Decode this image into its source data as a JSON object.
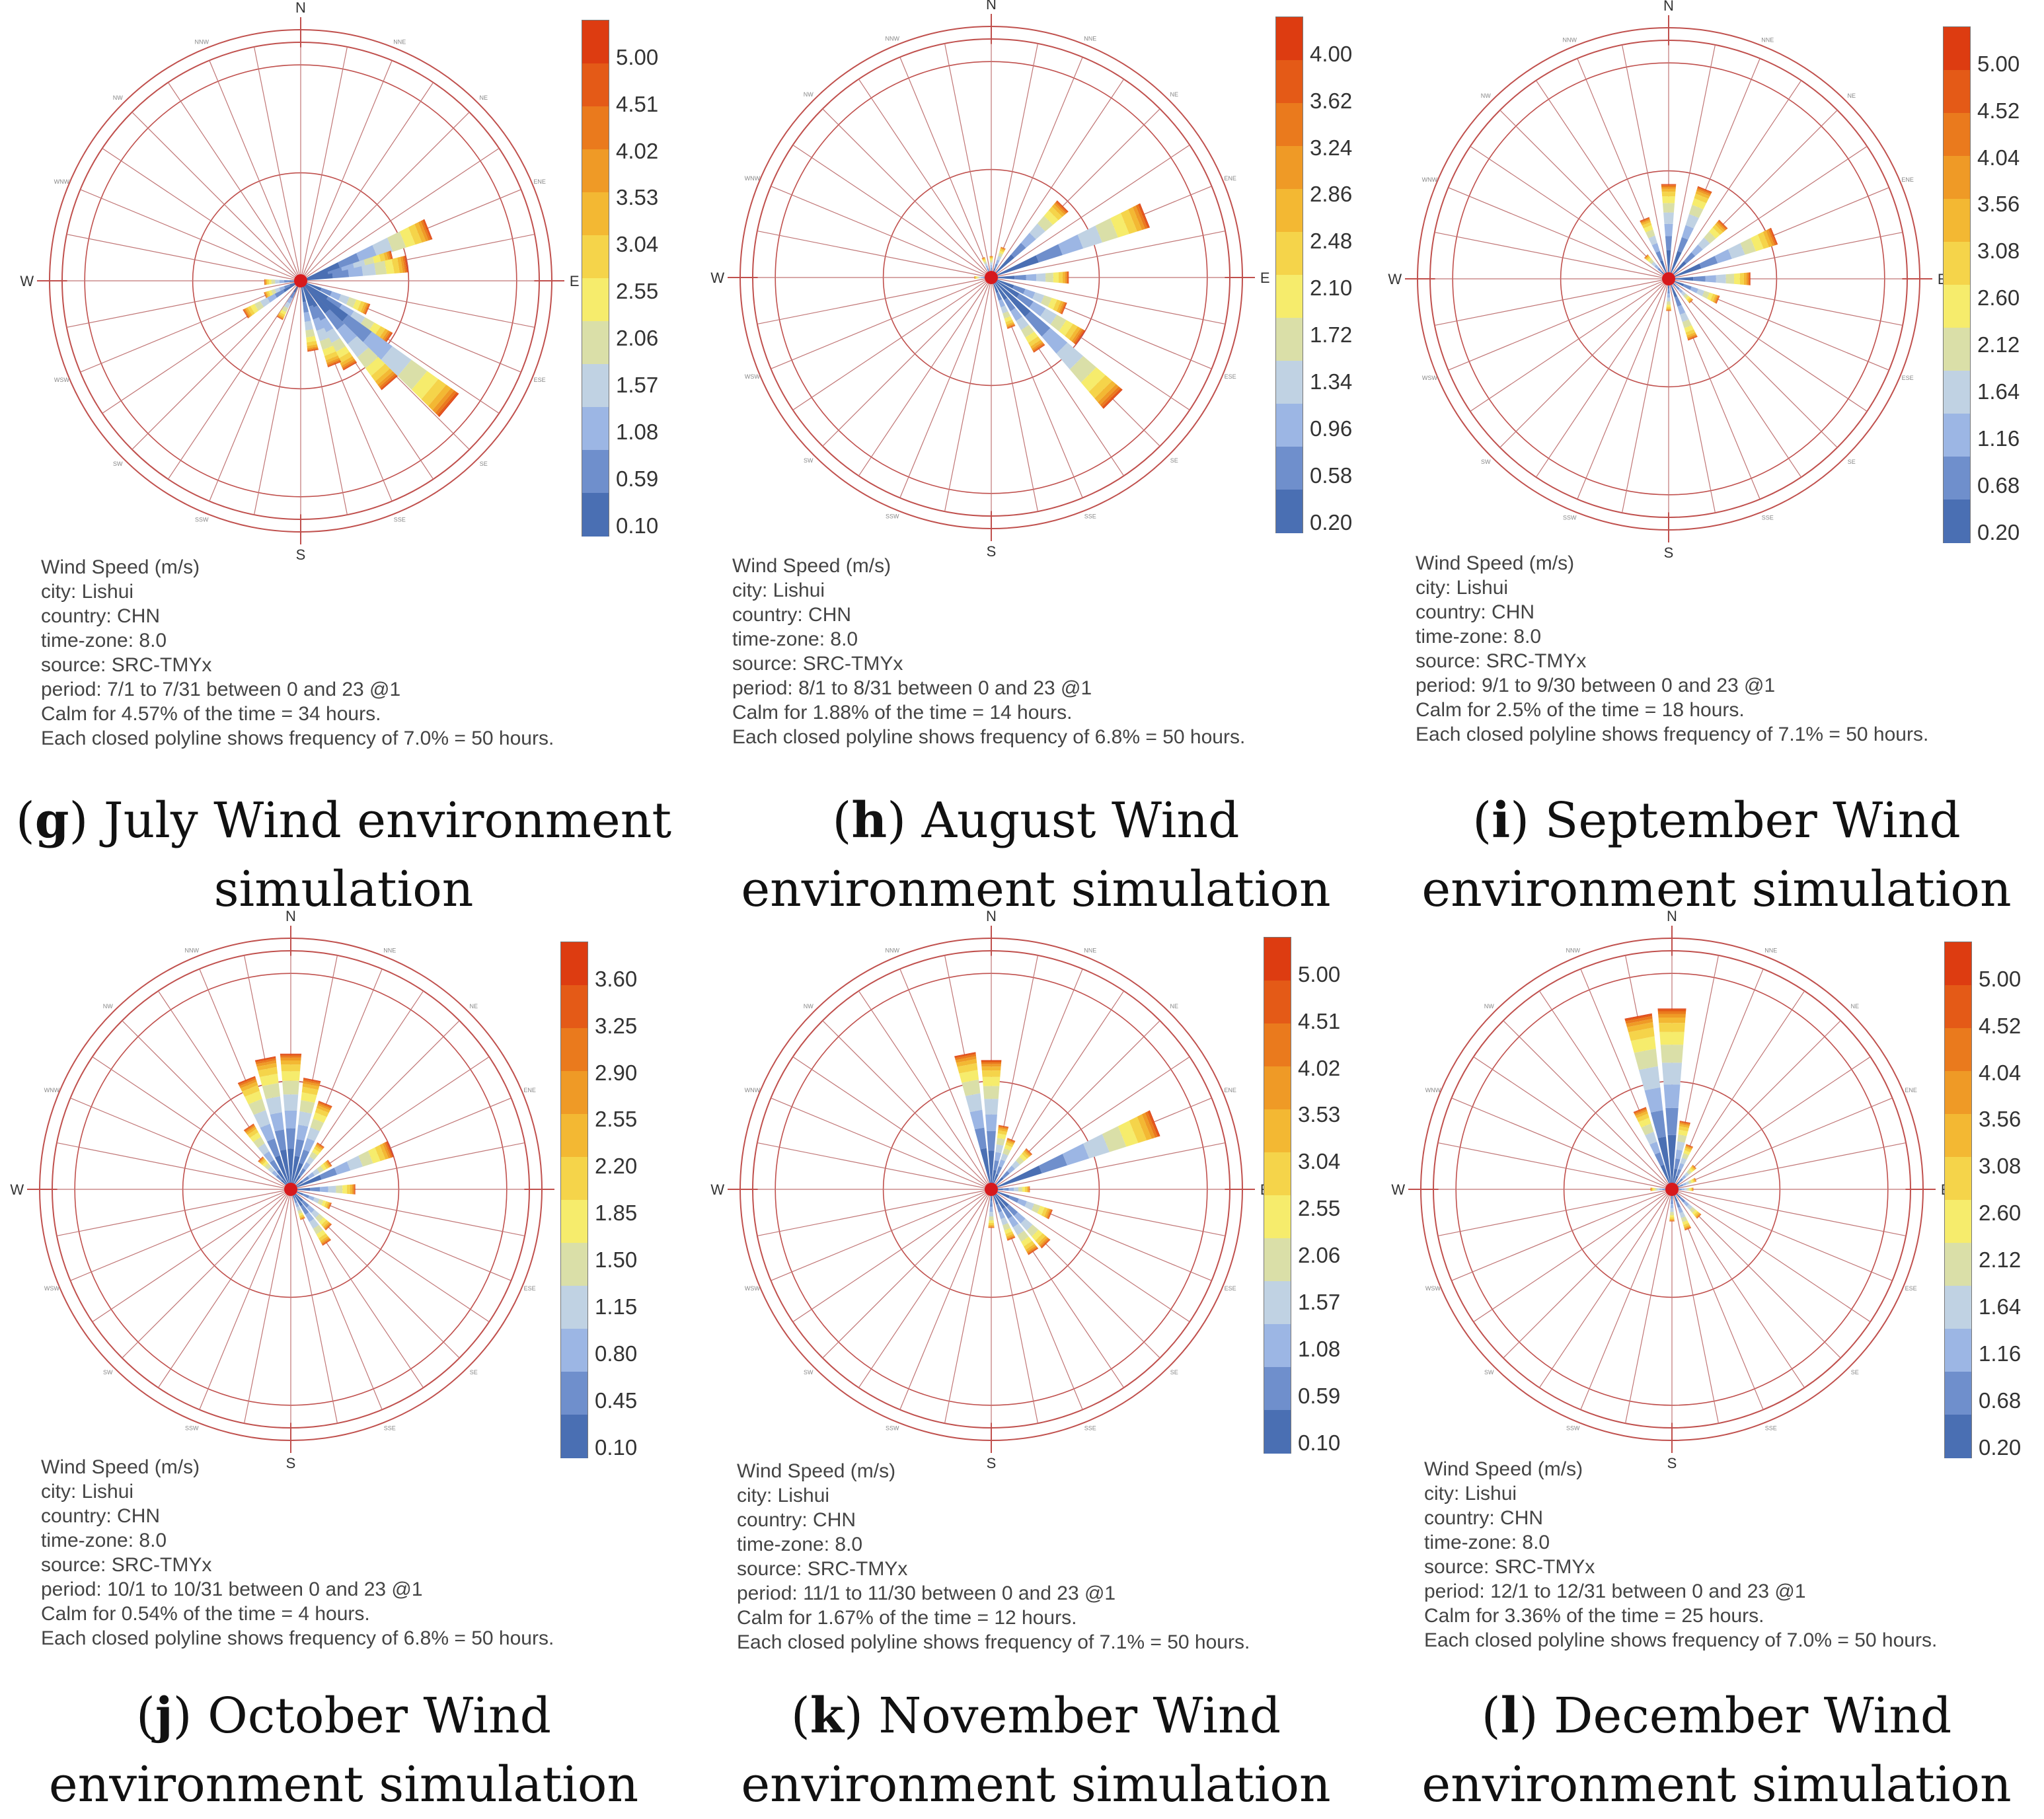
{
  "figure": {
    "directions": [
      "N",
      "NNE",
      "NE",
      "ENE",
      "E",
      "ESE",
      "SE",
      "SSE",
      "S",
      "SSW",
      "SW",
      "WSW",
      "W",
      "WNW",
      "NW",
      "NNW"
    ],
    "legend_colors": [
      "#4a6fb3",
      "#6f8fcc",
      "#9cb6e4",
      "#c0d2e3",
      "#dadfa8",
      "#f6ec6c",
      "#f5d44a",
      "#f3b833",
      "#ef9a26",
      "#ea7a1d",
      "#e45a17",
      "#dd3c11"
    ],
    "colors": {
      "ring": "#c0504d",
      "spoke": "#c07575",
      "center": "#d7191c"
    }
  },
  "chart_data": [
    {
      "type": "wind_rose",
      "id": "g",
      "title_label": "g",
      "title_text": "July Wind environment simulation",
      "legend_title": "Wind Speed (m/s)",
      "legend_ticks": [
        "5.00",
        "4.51",
        "4.02",
        "3.53",
        "3.04",
        "2.55",
        "2.06",
        "1.57",
        "1.08",
        "0.59",
        "0.10"
      ],
      "info": [
        "Wind Speed (m/s)",
        "city: Lishui",
        "country: CHN",
        "time-zone: 8.0",
        "source: SRC-TMYx",
        "period: 7/1 to 7/31 between 0 and 23 @1",
        "Calm for 4.57% of the time = 34 hours.",
        "Each closed polyline shows frequency of 7.0% = 50 hours."
      ],
      "petals": [
        [
          68,
          0.64
        ],
        [
          76,
          0.44
        ],
        [
          81,
          0.5
        ],
        [
          113,
          0.34
        ],
        [
          124,
          0.49
        ],
        [
          130,
          0.9
        ],
        [
          139,
          0.63
        ],
        [
          150,
          0.46
        ],
        [
          158,
          0.42
        ],
        [
          170,
          0.33
        ],
        [
          209,
          0.2
        ],
        [
          239,
          0.3
        ],
        [
          248,
          0.18
        ],
        [
          268,
          0.17
        ]
      ]
    },
    {
      "type": "wind_rose",
      "id": "h",
      "title_label": "h",
      "title_text": "August Wind environment simulation",
      "legend_title": "Wind Speed (m/s)",
      "legend_ticks": [
        "4.00",
        "3.62",
        "3.24",
        "2.86",
        "2.48",
        "2.10",
        "1.72",
        "1.34",
        "0.96",
        "0.58",
        "0.20"
      ],
      "info": [
        "Wind Speed (m/s)",
        "city: Lishui",
        "country: CHN",
        "time-zone: 8.0",
        "source: SRC-TMYx",
        "period: 8/1 to 8/31 between 0 and 23 @1",
        "Calm for 1.88% of the time = 14 hours.",
        "Each closed polyline shows frequency of 6.8% = 50 hours."
      ],
      "petals": [
        [
          45,
          0.47
        ],
        [
          68,
          0.77
        ],
        [
          90,
          0.36
        ],
        [
          113,
          0.37
        ],
        [
          124,
          0.5
        ],
        [
          135,
          0.8
        ],
        [
          146,
          0.4
        ],
        [
          158,
          0.25
        ],
        [
          22,
          0.15
        ],
        [
          0,
          0.1
        ],
        [
          338,
          0.1
        ],
        [
          270,
          0.08
        ]
      ]
    },
    {
      "type": "wind_rose",
      "id": "i",
      "title_label": "i",
      "title_text": "September Wind environment simulation",
      "legend_title": "Wind Speed (m/s)",
      "legend_ticks": [
        "5.00",
        "4.52",
        "4.04",
        "3.56",
        "3.08",
        "2.60",
        "2.12",
        "1.64",
        "1.16",
        "0.68",
        "0.20"
      ],
      "info": [
        "Wind Speed (m/s)",
        "city: Lishui",
        "country: CHN",
        "time-zone: 8.0",
        "source: SRC-TMYx",
        "period: 9/1 to 9/30 between 0 and 23 @1",
        "Calm for 2.5% of the time = 18 hours.",
        "Each closed polyline shows frequency of 7.1% = 50 hours."
      ],
      "petals": [
        [
          0,
          0.44
        ],
        [
          22,
          0.45
        ],
        [
          45,
          0.36
        ],
        [
          68,
          0.53
        ],
        [
          90,
          0.38
        ],
        [
          113,
          0.25
        ],
        [
          135,
          0.15
        ],
        [
          158,
          0.3
        ],
        [
          180,
          0.15
        ],
        [
          338,
          0.3
        ],
        [
          315,
          0.15
        ]
      ]
    },
    {
      "type": "wind_rose",
      "id": "j",
      "title_label": "j",
      "title_text": "October Wind environment simulation",
      "legend_title": "Wind Speed (m/s)",
      "legend_ticks": [
        "3.60",
        "3.25",
        "2.90",
        "2.55",
        "2.20",
        "1.85",
        "1.50",
        "1.15",
        "0.80",
        "0.45",
        "0.10"
      ],
      "info": [
        "Wind Speed (m/s)",
        "city: Lishui",
        "country: CHN",
        "time-zone: 8.0",
        "source: SRC-TMYx",
        "period: 10/1 to 10/31 between 0 and 23 @1",
        "Calm for 0.54% of the time = 4 hours.",
        "Each closed polyline shows frequency of 6.8% = 50 hours."
      ],
      "petals": [
        [
          0,
          0.63
        ],
        [
          11,
          0.52
        ],
        [
          22,
          0.43
        ],
        [
          34,
          0.25
        ],
        [
          56,
          0.22
        ],
        [
          68,
          0.5
        ],
        [
          90,
          0.3
        ],
        [
          113,
          0.2
        ],
        [
          135,
          0.25
        ],
        [
          146,
          0.3
        ],
        [
          158,
          0.15
        ],
        [
          349,
          0.62
        ],
        [
          338,
          0.55
        ],
        [
          326,
          0.35
        ],
        [
          315,
          0.2
        ]
      ]
    },
    {
      "type": "wind_rose",
      "id": "k",
      "title_label": "k",
      "title_text": "November Wind environment simulation",
      "legend_title": "Wind Speed (m/s)",
      "legend_ticks": [
        "5.00",
        "4.51",
        "4.02",
        "3.53",
        "3.04",
        "2.55",
        "2.06",
        "1.57",
        "1.08",
        "0.59",
        "0.10"
      ],
      "info": [
        "Wind Speed (m/s)",
        "city: Lishui",
        "country: CHN",
        "time-zone: 8.0",
        "source: SRC-TMYx",
        "period: 11/1 to 11/30 between 0 and 23 @1",
        "Calm for 1.67% of the time = 12 hours.",
        "Each closed polyline shows frequency of 7.1% = 50 hours."
      ],
      "petals": [
        [
          68,
          0.82
        ],
        [
          0,
          0.6
        ],
        [
          349,
          0.64
        ],
        [
          11,
          0.3
        ],
        [
          22,
          0.25
        ],
        [
          45,
          0.25
        ],
        [
          90,
          0.18
        ],
        [
          113,
          0.3
        ],
        [
          135,
          0.36
        ],
        [
          146,
          0.35
        ],
        [
          158,
          0.25
        ],
        [
          180,
          0.18
        ]
      ]
    },
    {
      "type": "wind_rose",
      "id": "l",
      "title_label": "l",
      "title_text": "December Wind environment simulation",
      "legend_title": "Wind Speed (m/s)",
      "legend_ticks": [
        "5.00",
        "4.52",
        "4.04",
        "3.56",
        "3.08",
        "2.60",
        "2.12",
        "1.64",
        "1.16",
        "0.68",
        "0.20"
      ],
      "info": [
        "Wind Speed (m/s)",
        "city: Lishui",
        "country: CHN",
        "time-zone: 8.0",
        "source: SRC-TMYx",
        "period: 12/1 to 12/31 between 0 and 23 @1",
        "Calm for 3.36% of the time = 25 hours.",
        "Each closed polyline shows frequency of 7.0% = 50 hours."
      ],
      "petals": [
        [
          0,
          0.84
        ],
        [
          349,
          0.82
        ],
        [
          338,
          0.4
        ],
        [
          11,
          0.32
        ],
        [
          22,
          0.22
        ],
        [
          45,
          0.15
        ],
        [
          68,
          0.12
        ],
        [
          90,
          0.1
        ],
        [
          135,
          0.18
        ],
        [
          158,
          0.2
        ],
        [
          180,
          0.15
        ],
        [
          270,
          0.1
        ]
      ]
    }
  ]
}
